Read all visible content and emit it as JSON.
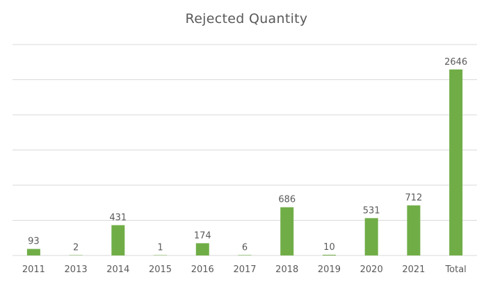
{
  "chart_data": {
    "type": "bar",
    "title": "Rejected Quantity",
    "xlabel": "",
    "ylabel": "",
    "categories": [
      "2011",
      "2013",
      "2014",
      "2015",
      "2016",
      "2017",
      "2018",
      "2019",
      "2020",
      "2021",
      "Total"
    ],
    "values": [
      93,
      2,
      431,
      1,
      174,
      6,
      686,
      10,
      531,
      712,
      2646
    ],
    "ylim": [
      0,
      3000
    ],
    "grid": true,
    "legend": "none",
    "data_labels": true,
    "bar_color": "#70AD47",
    "gridline_color": "#D9D9D9",
    "text_color": "#595959"
  }
}
